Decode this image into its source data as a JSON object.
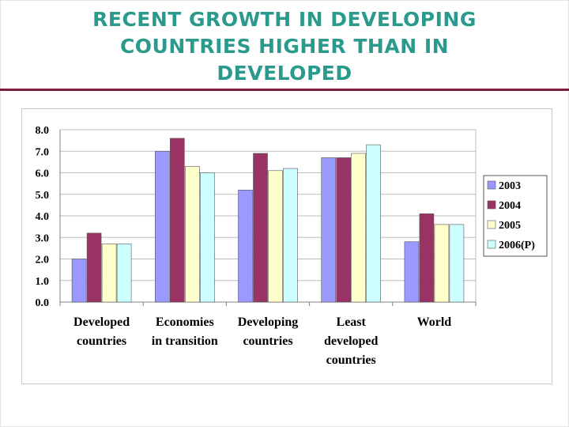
{
  "slide": {
    "title_lines": [
      "RECENT GROWTH IN DEVELOPING",
      "COUNTRIES HIGHER THAN IN",
      "DEVELOPED"
    ]
  },
  "chart_data": {
    "type": "bar",
    "title": "",
    "xlabel": "",
    "ylabel": "",
    "ylim": [
      0,
      8
    ],
    "yticks": [
      "0.0",
      "1.0",
      "2.0",
      "3.0",
      "4.0",
      "5.0",
      "6.0",
      "7.0",
      "8.0"
    ],
    "grid": true,
    "legend_position": "right",
    "categories": [
      [
        "Developed",
        "countries"
      ],
      [
        "Economies",
        "in transition"
      ],
      [
        "Developing",
        "countries"
      ],
      [
        "Least",
        "developed",
        "countries"
      ],
      [
        "World"
      ]
    ],
    "series": [
      {
        "name": "2003",
        "color": "#9999ff",
        "values": [
          2.0,
          7.0,
          5.2,
          6.7,
          2.8
        ]
      },
      {
        "name": "2004",
        "color": "#993366",
        "values": [
          3.2,
          7.6,
          6.9,
          6.7,
          4.1
        ]
      },
      {
        "name": "2005",
        "color": "#ffffcc",
        "values": [
          2.7,
          6.3,
          6.1,
          6.9,
          3.6
        ]
      },
      {
        "name": "2006(P)",
        "color": "#ccffff",
        "values": [
          2.7,
          6.0,
          6.2,
          7.3,
          3.6
        ]
      }
    ]
  }
}
